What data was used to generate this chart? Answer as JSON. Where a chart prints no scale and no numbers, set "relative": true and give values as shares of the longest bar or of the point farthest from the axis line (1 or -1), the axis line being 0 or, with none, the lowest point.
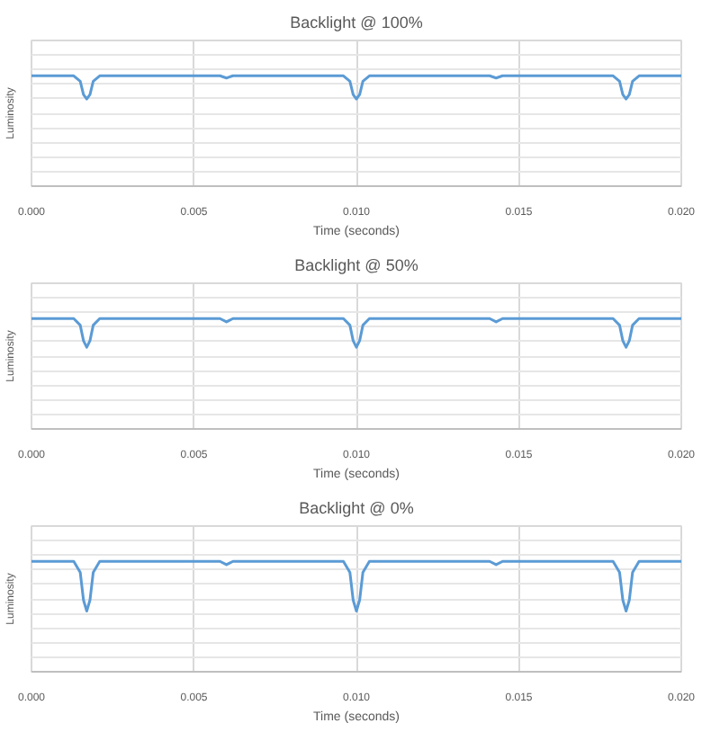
{
  "chart_data": [
    {
      "type": "line",
      "title": "Backlight @ 100%",
      "xlabel": "Time (seconds)",
      "ylabel": "Luminosity",
      "relative": true,
      "grid": true,
      "tick_labels": "x",
      "xlim": [
        0,
        0.02
      ],
      "xticks": [
        {
          "value": 0,
          "label": "0.000"
        },
        {
          "value": 0.005,
          "label": "0.005"
        },
        {
          "value": 0.01,
          "label": "0.010"
        },
        {
          "value": 0.015,
          "label": "0.015"
        },
        {
          "value": 0.02,
          "label": "0.020"
        }
      ],
      "x": [
        0,
        0.0013,
        0.0015,
        0.0016,
        0.0017,
        0.0018,
        0.0019,
        0.0021,
        0.0058,
        0.006,
        0.0062,
        0.0096,
        0.0098,
        0.0099,
        0.01,
        0.0101,
        0.0102,
        0.0104,
        0.0141,
        0.0143,
        0.0145,
        0.0179,
        0.0181,
        0.0182,
        0.0183,
        0.0184,
        0.0185,
        0.0187,
        0.02
      ],
      "series": [
        {
          "color": "#5b9bd5",
          "values": [
            1,
            1,
            0.95,
            0.83,
            0.79,
            0.83,
            0.95,
            1,
            1,
            0.98,
            1,
            1,
            0.95,
            0.83,
            0.79,
            0.83,
            0.95,
            1,
            1,
            0.98,
            1,
            1,
            0.95,
            0.83,
            0.79,
            0.83,
            0.95,
            1,
            1
          ]
        }
      ]
    },
    {
      "type": "line",
      "title": "Backlight @ 50%",
      "xlabel": "Time (seconds)",
      "ylabel": "Luminosity",
      "relative": true,
      "grid": true,
      "tick_labels": "x",
      "xlim": [
        0,
        0.02
      ],
      "xticks": [
        {
          "value": 0,
          "label": "0.000"
        },
        {
          "value": 0.005,
          "label": "0.005"
        },
        {
          "value": 0.01,
          "label": "0.010"
        },
        {
          "value": 0.015,
          "label": "0.015"
        },
        {
          "value": 0.02,
          "label": "0.020"
        }
      ],
      "x": [
        0,
        0.0013,
        0.0015,
        0.0016,
        0.0017,
        0.0018,
        0.0019,
        0.0021,
        0.0058,
        0.006,
        0.0062,
        0.0096,
        0.0098,
        0.0099,
        0.01,
        0.0101,
        0.0102,
        0.0104,
        0.0141,
        0.0143,
        0.0145,
        0.0179,
        0.0181,
        0.0182,
        0.0183,
        0.0184,
        0.0185,
        0.0187,
        0.02
      ],
      "series": [
        {
          "color": "#5b9bd5",
          "values": [
            1,
            1,
            0.94,
            0.8,
            0.74,
            0.8,
            0.94,
            1,
            1,
            0.97,
            1,
            1,
            0.94,
            0.8,
            0.74,
            0.8,
            0.94,
            1,
            1,
            0.97,
            1,
            1,
            0.94,
            0.8,
            0.74,
            0.8,
            0.94,
            1,
            1
          ]
        }
      ]
    },
    {
      "type": "line",
      "title": "Backlight @ 0%",
      "xlabel": "Time (seconds)",
      "ylabel": "Luminosity",
      "relative": true,
      "grid": true,
      "tick_labels": "x",
      "xlim": [
        0,
        0.02
      ],
      "xticks": [
        {
          "value": 0,
          "label": "0.000"
        },
        {
          "value": 0.005,
          "label": "0.005"
        },
        {
          "value": 0.01,
          "label": "0.010"
        },
        {
          "value": 0.015,
          "label": "0.015"
        },
        {
          "value": 0.02,
          "label": "0.020"
        }
      ],
      "x": [
        0,
        0.0013,
        0.0015,
        0.0016,
        0.0017,
        0.0018,
        0.0019,
        0.0021,
        0.0058,
        0.006,
        0.0062,
        0.0096,
        0.0098,
        0.0099,
        0.01,
        0.0101,
        0.0102,
        0.0104,
        0.0141,
        0.0143,
        0.0145,
        0.0179,
        0.0181,
        0.0182,
        0.0183,
        0.0184,
        0.0185,
        0.0187,
        0.02
      ],
      "series": [
        {
          "color": "#5b9bd5",
          "values": [
            1,
            1,
            0.9,
            0.65,
            0.55,
            0.65,
            0.9,
            1,
            1,
            0.97,
            1,
            1,
            0.9,
            0.65,
            0.55,
            0.65,
            0.9,
            1,
            1,
            0.97,
            1,
            1,
            0.9,
            0.65,
            0.55,
            0.65,
            0.9,
            1,
            1
          ]
        }
      ]
    }
  ]
}
